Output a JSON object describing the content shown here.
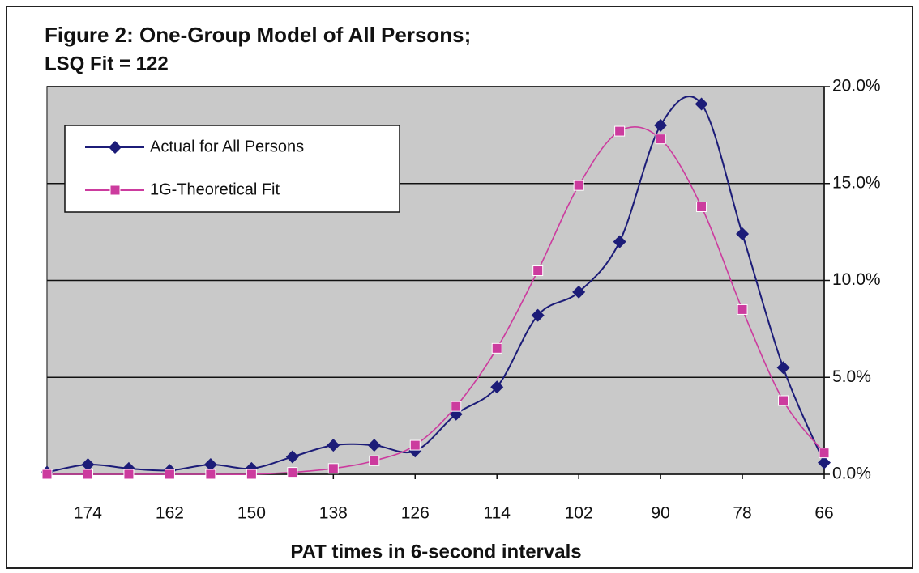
{
  "chart_data": {
    "type": "line",
    "title": "Figure 2:  One-Group Model of All Persons;",
    "subtitle": "LSQ Fit = 122",
    "xlabel": "PAT times in 6-second intervals",
    "x": [
      180,
      174,
      168,
      162,
      156,
      150,
      144,
      138,
      132,
      126,
      120,
      114,
      108,
      102,
      96,
      90,
      84,
      78,
      72,
      66
    ],
    "xlim": [
      180,
      66
    ],
    "xticks": [
      174,
      162,
      150,
      138,
      126,
      114,
      102,
      90,
      78,
      66
    ],
    "ylim": [
      0,
      20
    ],
    "yticks": [
      {
        "value": 0,
        "label": "0.0%"
      },
      {
        "value": 5,
        "label": "5.0%"
      },
      {
        "value": 10,
        "label": "10.0%"
      },
      {
        "value": 15,
        "label": "15.0%"
      },
      {
        "value": 20,
        "label": "20.0%"
      }
    ],
    "grid": true,
    "legend": "upper left",
    "series": [
      {
        "name": "Actual for All Persons",
        "color": "#1c1c78",
        "marker": "diamond",
        "values": [
          0.1,
          0.5,
          0.3,
          0.2,
          0.5,
          0.3,
          0.9,
          1.5,
          1.5,
          1.2,
          3.1,
          4.5,
          8.2,
          9.4,
          12.0,
          18.0,
          19.1,
          12.4,
          5.5,
          0.6
        ]
      },
      {
        "name": "1G-Theoretical Fit",
        "color": "#cc3b9e",
        "marker": "square",
        "values": [
          0.0,
          0.0,
          0.0,
          0.0,
          0.0,
          0.0,
          0.1,
          0.3,
          0.7,
          1.5,
          3.5,
          6.5,
          10.5,
          14.9,
          17.7,
          17.3,
          13.8,
          8.5,
          3.8,
          1.1
        ]
      }
    ]
  }
}
